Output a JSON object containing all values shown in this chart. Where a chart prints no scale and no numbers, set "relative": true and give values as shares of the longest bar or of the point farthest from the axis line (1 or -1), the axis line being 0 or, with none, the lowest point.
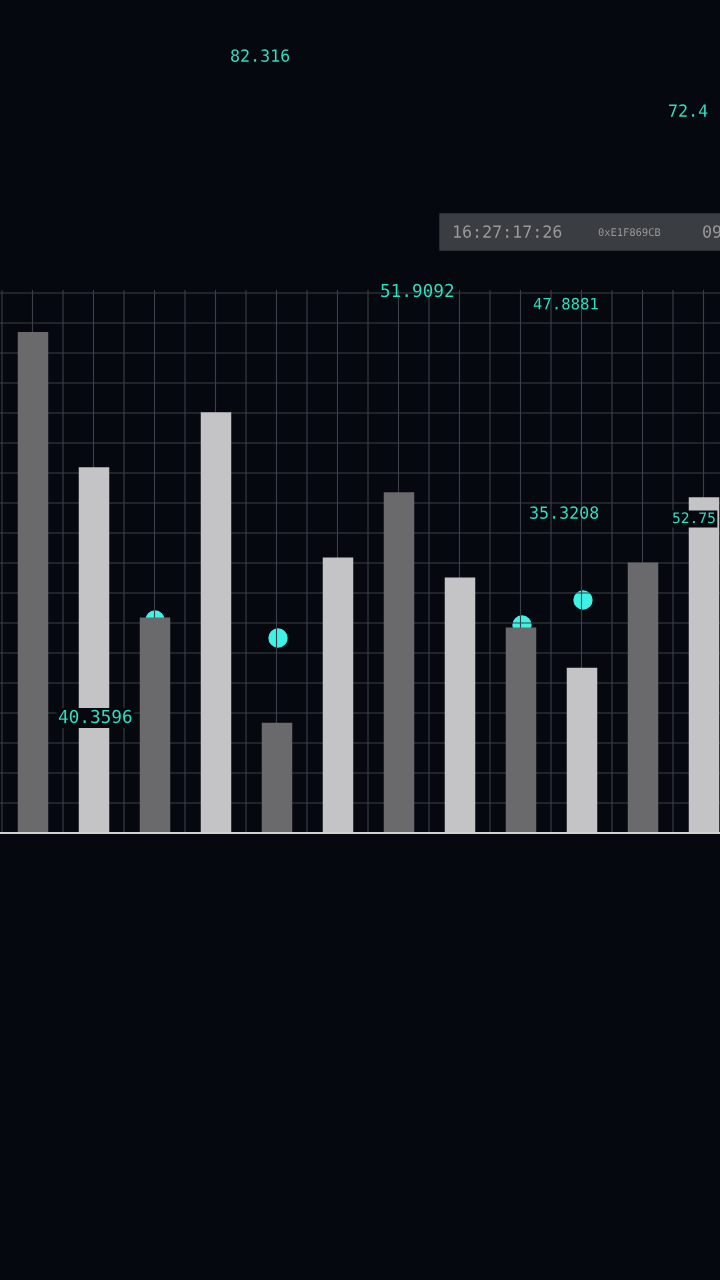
{
  "chart_data": {
    "type": "bar",
    "relative": true,
    "grid": true,
    "categories": [
      null,
      null,
      null,
      null,
      null,
      null,
      null,
      null,
      null,
      null,
      null,
      null
    ],
    "series": [
      {
        "colors": [
          "#6a6a6c",
          "#c4c4c6",
          "#6a6a6c",
          "#c4c4c6",
          "#6a6a6c",
          "#c4c4c6",
          "#6a6a6c",
          "#c4c4c6",
          "#6a6a6c",
          "#c4c4c6",
          "#6a6a6c",
          "#c4c4c6"
        ],
        "values": [
          1,
          0.73,
          0.43,
          0.84,
          0.22,
          0.55,
          0.68,
          0.51,
          0.41,
          0.33,
          0.54,
          0.67
        ]
      }
    ],
    "annotations": [
      "82.316",
      "72.4",
      "16:27:17:26",
      "0xE1F869CB",
      "09",
      "51.9092",
      "47.8881",
      "35.3208",
      "52.75",
      "40.3596"
    ]
  }
}
